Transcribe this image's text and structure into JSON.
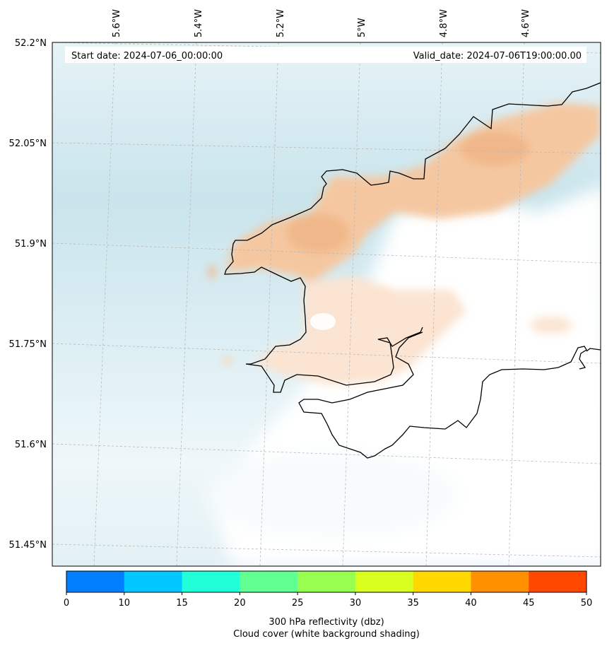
{
  "header": {
    "start_date": "Start date: 2024-07-06_00:00:00",
    "valid_date": "Valid_date: 2024-07-06T19:00:00.00"
  },
  "longitude_labels": [
    "5.6°W",
    "5.4°W",
    "5.2°W",
    "5°W",
    "4.8°W",
    "4.6°W"
  ],
  "latitude_labels": [
    "52.2°N",
    "52.05°N",
    "51.9°N",
    "51.75°N",
    "51.6°N",
    "51.45°N"
  ],
  "colorbar": {
    "ticks": [
      "0",
      "10",
      "15",
      "20",
      "25",
      "30",
      "35",
      "40",
      "45",
      "50"
    ],
    "colors": [
      "#0080ff",
      "#00c8ff",
      "#20ffd8",
      "#60ff90",
      "#98ff50",
      "#d8ff20",
      "#ffd800",
      "#ff9000",
      "#ff4800"
    ],
    "label_line1": "300 hPa reflectivity (dbz)",
    "label_line2": "Cloud cover (white background shading)"
  },
  "colors": {
    "sea_cloud": "#cfe8ef",
    "land_cloud": "#f6c9a2",
    "clear": "#ffffff",
    "coast": "#000000"
  }
}
